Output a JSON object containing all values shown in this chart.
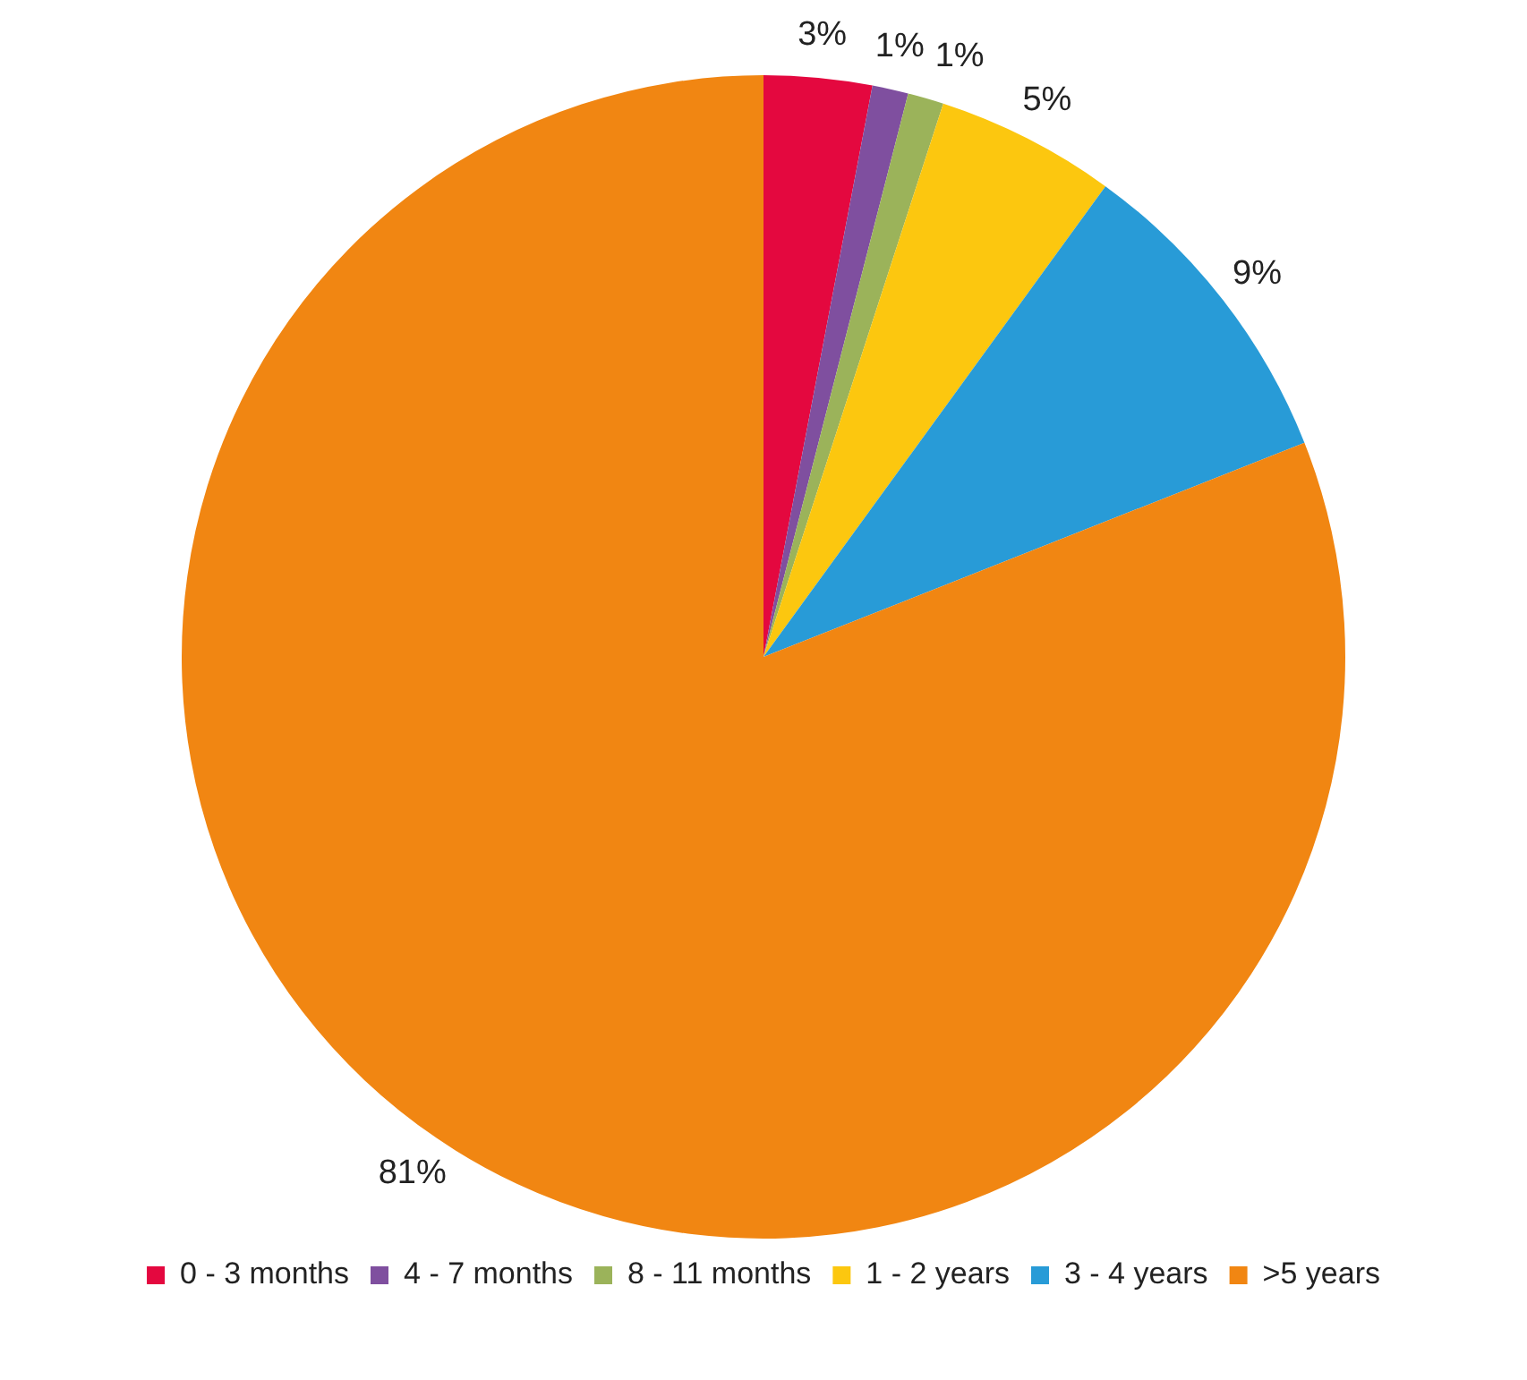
{
  "chart_data": {
    "type": "pie",
    "categories": [
      "0 - 3 months",
      "4 - 7 months",
      "8 - 11 months",
      "1 - 2 years",
      "3 - 4 years",
      ">5 years"
    ],
    "values": [
      3,
      1,
      1,
      5,
      9,
      81
    ],
    "colors": [
      "#e4083f",
      "#7f4f9f",
      "#9bb35a",
      "#fcc70f",
      "#289bd7",
      "#f18612"
    ],
    "value_labels": [
      "3%",
      "1%",
      "1%",
      "5%",
      "9%",
      "81%"
    ],
    "legend": "bottom"
  }
}
